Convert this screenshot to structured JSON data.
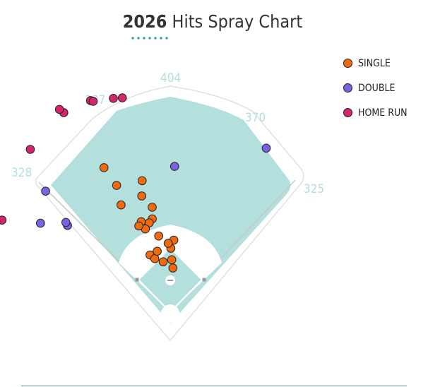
{
  "title": {
    "year": "2026",
    "text": "Hits Spray Chart"
  },
  "colors": {
    "single": "#f26a0e",
    "double": "#7b62e2",
    "home_run": "#d4256e",
    "grass": "#b3dfdd",
    "accent": "#2a98a4"
  },
  "distances": {
    "left_line": "328",
    "left_center": "387",
    "center": "404",
    "right_center": "370",
    "right_line": "325"
  },
  "legend": [
    {
      "label": "SINGLE",
      "color": "#f26a0e"
    },
    {
      "label": "DOUBLE",
      "color": "#7b62e2"
    },
    {
      "label": "HOME RUN",
      "color": "#d4256e"
    }
  ],
  "chart_data": {
    "type": "scatter",
    "title": "2026 Hits Spray Chart",
    "series": [
      {
        "name": "SINGLE",
        "color": "#f26a0e",
        "points": [
          [
            -0.34,
            0.37
          ],
          [
            -0.14,
            0.31
          ],
          [
            -0.28,
            0.34
          ],
          [
            -0.15,
            0.47
          ],
          [
            -0.21,
            0.38
          ],
          [
            0.06,
            0.27
          ],
          [
            0.01,
            0.39
          ],
          [
            0.03,
            0.32
          ],
          [
            0.05,
            0.44
          ],
          [
            -0.03,
            0.42
          ],
          [
            -0.17,
            0.65
          ],
          [
            -0.19,
            0.58
          ],
          [
            -0.24,
            0.73
          ],
          [
            -0.23,
            0.56
          ],
          [
            -0.29,
            0.53
          ],
          [
            -0.31,
            0.58
          ],
          [
            -0.35,
            0.56
          ],
          [
            -0.43,
            0.72
          ],
          [
            -0.21,
            0.82
          ],
          [
            -0.4,
            0.84
          ],
          [
            -0.43,
            0.97
          ]
        ]
      },
      {
        "name": "DOUBLE",
        "color": "#7b62e2",
        "points": [
          [
            -0.87,
            0.82
          ],
          [
            -0.86,
            0.84
          ],
          [
            -0.97,
            0.96
          ],
          [
            -0.8,
            1.06
          ],
          [
            0.03,
            0.89
          ],
          [
            0.53,
            1.16
          ]
        ]
      },
      {
        "name": "HOME RUN",
        "color": "#d4256e",
        "points": [
          [
            -1.07,
            1.17
          ],
          [
            -1.09,
            1.2
          ],
          [
            -0.71,
            1.31
          ],
          [
            -0.49,
            1.38
          ],
          [
            -0.5,
            1.41
          ],
          [
            -0.36,
            1.38
          ],
          [
            -0.35,
            1.37
          ],
          [
            -0.26,
            1.35
          ],
          [
            -0.22,
            1.34
          ]
        ]
      }
    ]
  }
}
